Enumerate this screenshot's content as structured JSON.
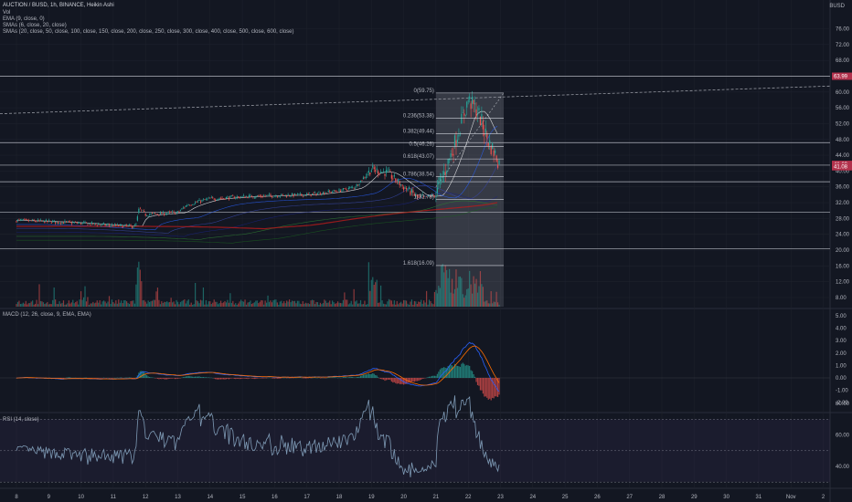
{
  "header": {
    "symbol_line": "AUCTION / BUSD, 1h, BINANCE, Heikin Ashi",
    "studies": [
      "Vol",
      "EMA (9, close, 0)",
      "SMAs (6, close, 20, close)",
      "SMAs (20, close, 50, close, 100, close, 150, close, 200, close, 250, close, 300, close, 400, close, 500, close, 600, close)"
    ],
    "currency": "BUSD"
  },
  "price_axis": {
    "ticks": [
      "76.00",
      "72.00",
      "68.00",
      "64.00",
      "60.00",
      "56.00",
      "52.00",
      "48.00",
      "44.00",
      "40.00",
      "36.00",
      "32.00",
      "28.00",
      "24.00",
      "20.00",
      "16.00",
      "12.00",
      "8.00"
    ],
    "tick_values": [
      76,
      72,
      68,
      64,
      60,
      56,
      52,
      48,
      44,
      40,
      36,
      32,
      28,
      24,
      20,
      16,
      12,
      8
    ],
    "badges": [
      {
        "text": "63.99",
        "value": 63.99,
        "color": "#b2314c"
      },
      {
        "text": "41.69",
        "value": 41.69,
        "color": "#b2314c"
      },
      {
        "text": "41.08",
        "value": 41.08,
        "color": "#b2314c"
      }
    ]
  },
  "fib": {
    "levels": [
      {
        "text": "0(59.75)",
        "value": 59.75
      },
      {
        "text": "0.236(53.38)",
        "value": 53.38
      },
      {
        "text": "0.382(49.44)",
        "value": 49.44
      },
      {
        "text": "0.5(46.26)",
        "value": 46.26
      },
      {
        "text": "0.618(43.07)",
        "value": 43.07
      },
      {
        "text": "0.786(38.54)",
        "value": 38.54
      },
      {
        "text": "1(32.78)",
        "value": 32.78
      },
      {
        "text": "1.618(16.09)",
        "value": 16.09
      }
    ]
  },
  "horizontal_lines": [
    64.0,
    47.2,
    41.5,
    37.3,
    29.6,
    20.4
  ],
  "macd": {
    "title": "MACD (12, 26, close, 9, EMA, EMA)",
    "ticks": [
      "5.00",
      "4.00",
      "3.00",
      "2.00",
      "1.00",
      "0.00",
      "-1.00",
      "-2.00"
    ],
    "tick_values": [
      5,
      4,
      3,
      2,
      1,
      0,
      -1,
      -2
    ]
  },
  "rsi": {
    "title": "RSI (14, close)",
    "ticks": [
      "80.00",
      "60.00",
      "40.00"
    ],
    "tick_values": [
      80,
      60,
      40
    ],
    "band_upper": 70,
    "band_lower": 30
  },
  "time_axis": [
    "8",
    "9",
    "10",
    "11",
    "12",
    "13",
    "14",
    "15",
    "16",
    "17",
    "18",
    "19",
    "20",
    "21",
    "22",
    "23",
    "24",
    "25",
    "26",
    "27",
    "28",
    "29",
    "30",
    "31",
    "Nov",
    "2"
  ],
  "colors": {
    "background": "#131722",
    "up": "#26a69a",
    "down": "#ef5350",
    "macd_line": "#2962ff",
    "signal_line": "#ff6d00",
    "rsi_line": "#7e9ab5",
    "fib_zone": "#5d606b"
  },
  "chart_data": {
    "type": "candlestick",
    "x_range": [
      "8",
      "Nov 2"
    ],
    "ylim": [
      6,
      78
    ],
    "price_path": [
      [
        "8",
        27.5
      ],
      [
        "9",
        27.2
      ],
      [
        "10",
        26.8
      ],
      [
        "11",
        26.2
      ],
      [
        "11.7",
        26.0
      ],
      [
        "11.8",
        30.5
      ],
      [
        "12",
        29.0
      ],
      [
        "13",
        29.5
      ],
      [
        "13.3",
        31.5
      ],
      [
        "14",
        33.0
      ],
      [
        "15",
        33.5
      ],
      [
        "16",
        33.8
      ],
      [
        "17",
        34.0
      ],
      [
        "18",
        35.0
      ],
      [
        "18.5",
        36.0
      ],
      [
        "19",
        40.5
      ],
      [
        "19.5",
        39.5
      ],
      [
        "20",
        36.0
      ],
      [
        "20.5",
        33.0
      ],
      [
        "21",
        34.0
      ],
      [
        "21.5",
        45.0
      ],
      [
        "22",
        58.0
      ],
      [
        "22.3",
        55.0
      ],
      [
        "22.6",
        48.0
      ],
      [
        "23",
        41.5
      ]
    ],
    "macd_range": [
      -2.5,
      5.5
    ],
    "rsi_range": [
      20,
      90
    ]
  }
}
